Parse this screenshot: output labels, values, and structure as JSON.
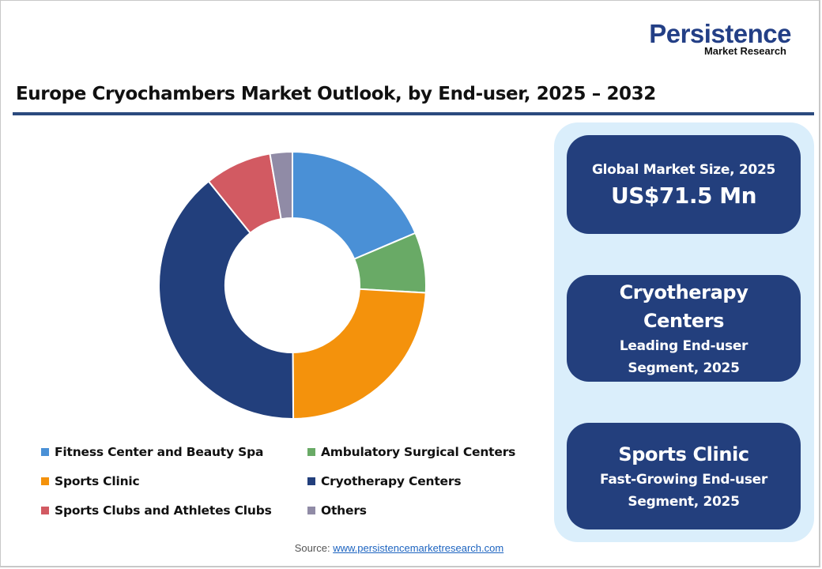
{
  "logo": {
    "brand": "Persistence",
    "sub": "Market Research"
  },
  "title": "Europe Cryochambers Market Outlook, by End-user, 2025 – 2032",
  "chart_data": {
    "type": "pie",
    "subtype": "donut",
    "title": "Europe Cryochambers Market Outlook, by End-user, 2025 – 2032",
    "unit": "% share (estimated from slice angles)",
    "categories": [
      "Fitness Center and Beauty Spa",
      "Ambulatory Surgical Centers",
      "Sports Clinic",
      "Cryotherapy Centers",
      "Sports Clubs and Athletes Clubs",
      "Others"
    ],
    "values": [
      18.6,
      7.3,
      24.0,
      39.3,
      8.1,
      2.7
    ],
    "colors": [
      "#4a90d6",
      "#69aa66",
      "#f4920c",
      "#223f7c",
      "#d25a62",
      "#908ba6"
    ],
    "start_angle": "12 o'clock, clockwise",
    "legend_position": "bottom",
    "legend_order": [
      "Fitness Center and Beauty Spa",
      "Ambulatory Surgical Centers",
      "Sports Clinic",
      "Cryotherapy Centers",
      "Sports Clubs and Athletes Clubs",
      "Others"
    ]
  },
  "legend": [
    {
      "label": "Fitness Center and Beauty Spa",
      "color": "#4a90d6"
    },
    {
      "label": "Ambulatory Surgical Centers",
      "color": "#69aa66"
    },
    {
      "label": "Sports Clinic",
      "color": "#f4920c"
    },
    {
      "label": "Cryotherapy Centers",
      "color": "#223f7c"
    },
    {
      "label": "Sports Clubs and Athletes Clubs",
      "color": "#d25a62"
    },
    {
      "label": "Others",
      "color": "#908ba6"
    }
  ],
  "source": {
    "label": "Source: ",
    "link": "www.persistencemarketresearch.com"
  },
  "cards": [
    {
      "line1": "Global Market Size, 2025",
      "line2": "US$71.5 Mn"
    },
    {
      "line1": "Cryotherapy",
      "line2": "Centers",
      "line3": "Leading End-user",
      "line4": "Segment, 2025"
    },
    {
      "line1": "Sports Clinic",
      "line2": "Fast-Growing End-user",
      "line3": "Segment, 2025"
    }
  ],
  "colors": {
    "title_rule": "#2b4a7e",
    "panel_bg": "#daeefb",
    "card_bg": "#233f7d",
    "brand": "#233f86"
  }
}
